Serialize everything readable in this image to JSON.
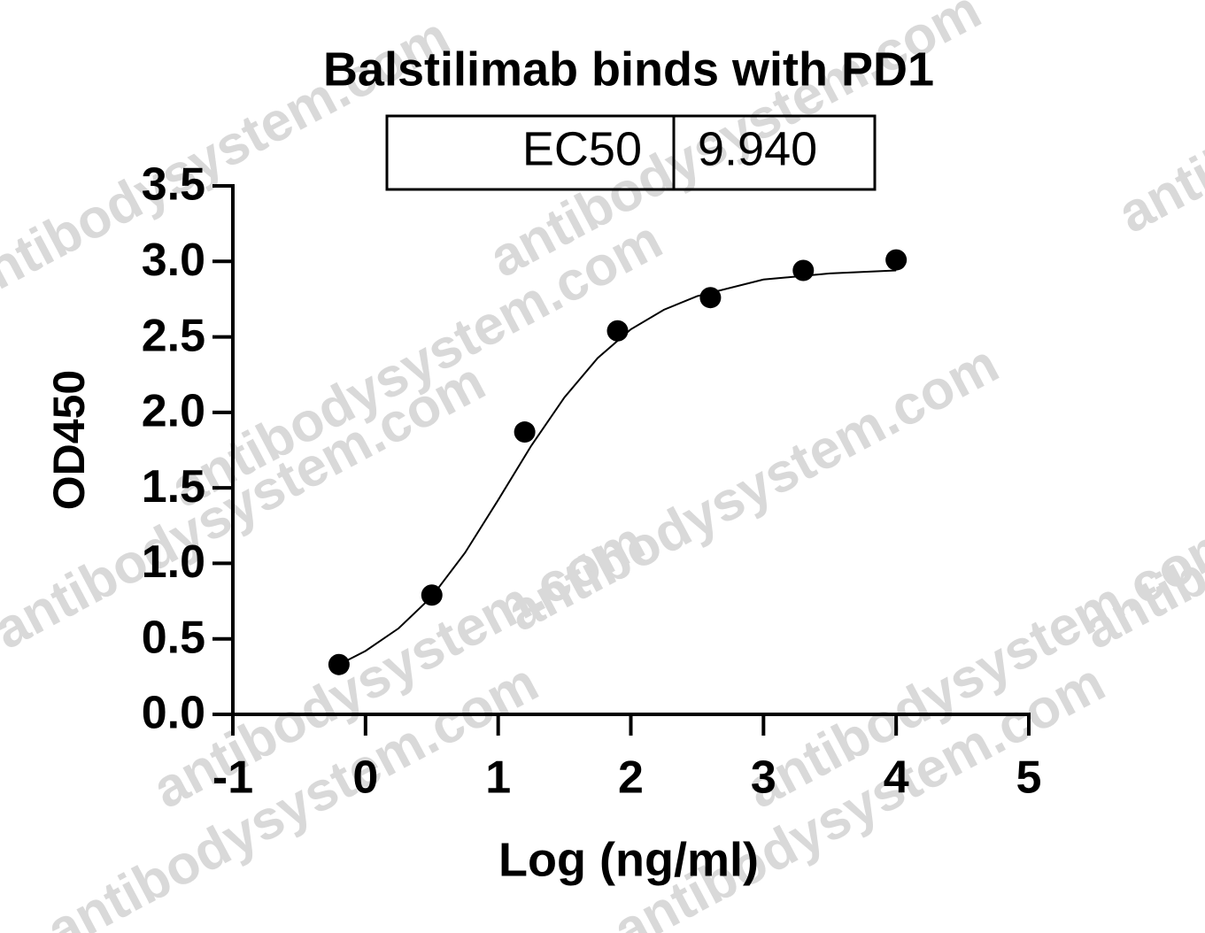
{
  "chart_data": {
    "type": "scatter",
    "title": "Balstilimab binds with PD1",
    "ec50_table": [
      "EC50",
      "9.940"
    ],
    "x_label": "Log (ng/ml)",
    "y_label": "OD450",
    "watermark": "antibodysystem.com",
    "color": "#000000",
    "x": [
      -0.2,
      0.5,
      1.2,
      1.9,
      2.6,
      3.3,
      4.0
    ],
    "values": [
      0.33,
      0.79,
      1.87,
      2.54,
      2.76,
      2.94,
      3.01
    ],
    "curve": {
      "x": [
        -0.2,
        0,
        0.25,
        0.5,
        0.75,
        1,
        1.25,
        1.5,
        1.75,
        2,
        2.25,
        2.5,
        3,
        3.5,
        4
      ],
      "y": [
        0.33,
        0.42,
        0.57,
        0.78,
        1.07,
        1.42,
        1.78,
        2.1,
        2.36,
        2.55,
        2.68,
        2.77,
        2.88,
        2.92,
        2.94
      ]
    },
    "xlim": [
      -1,
      5
    ],
    "ylim": [
      0,
      3.5
    ],
    "xticks": [
      -1,
      0,
      1,
      2,
      3,
      4,
      5
    ],
    "yticks": [
      {
        "value": 0,
        "label": "0.0"
      },
      0.5,
      {
        "value": 1,
        "label": "1.0"
      },
      1.5,
      {
        "value": 2,
        "label": "2.0"
      },
      2.5,
      {
        "value": 3,
        "label": "3.0"
      },
      3.5
    ]
  }
}
